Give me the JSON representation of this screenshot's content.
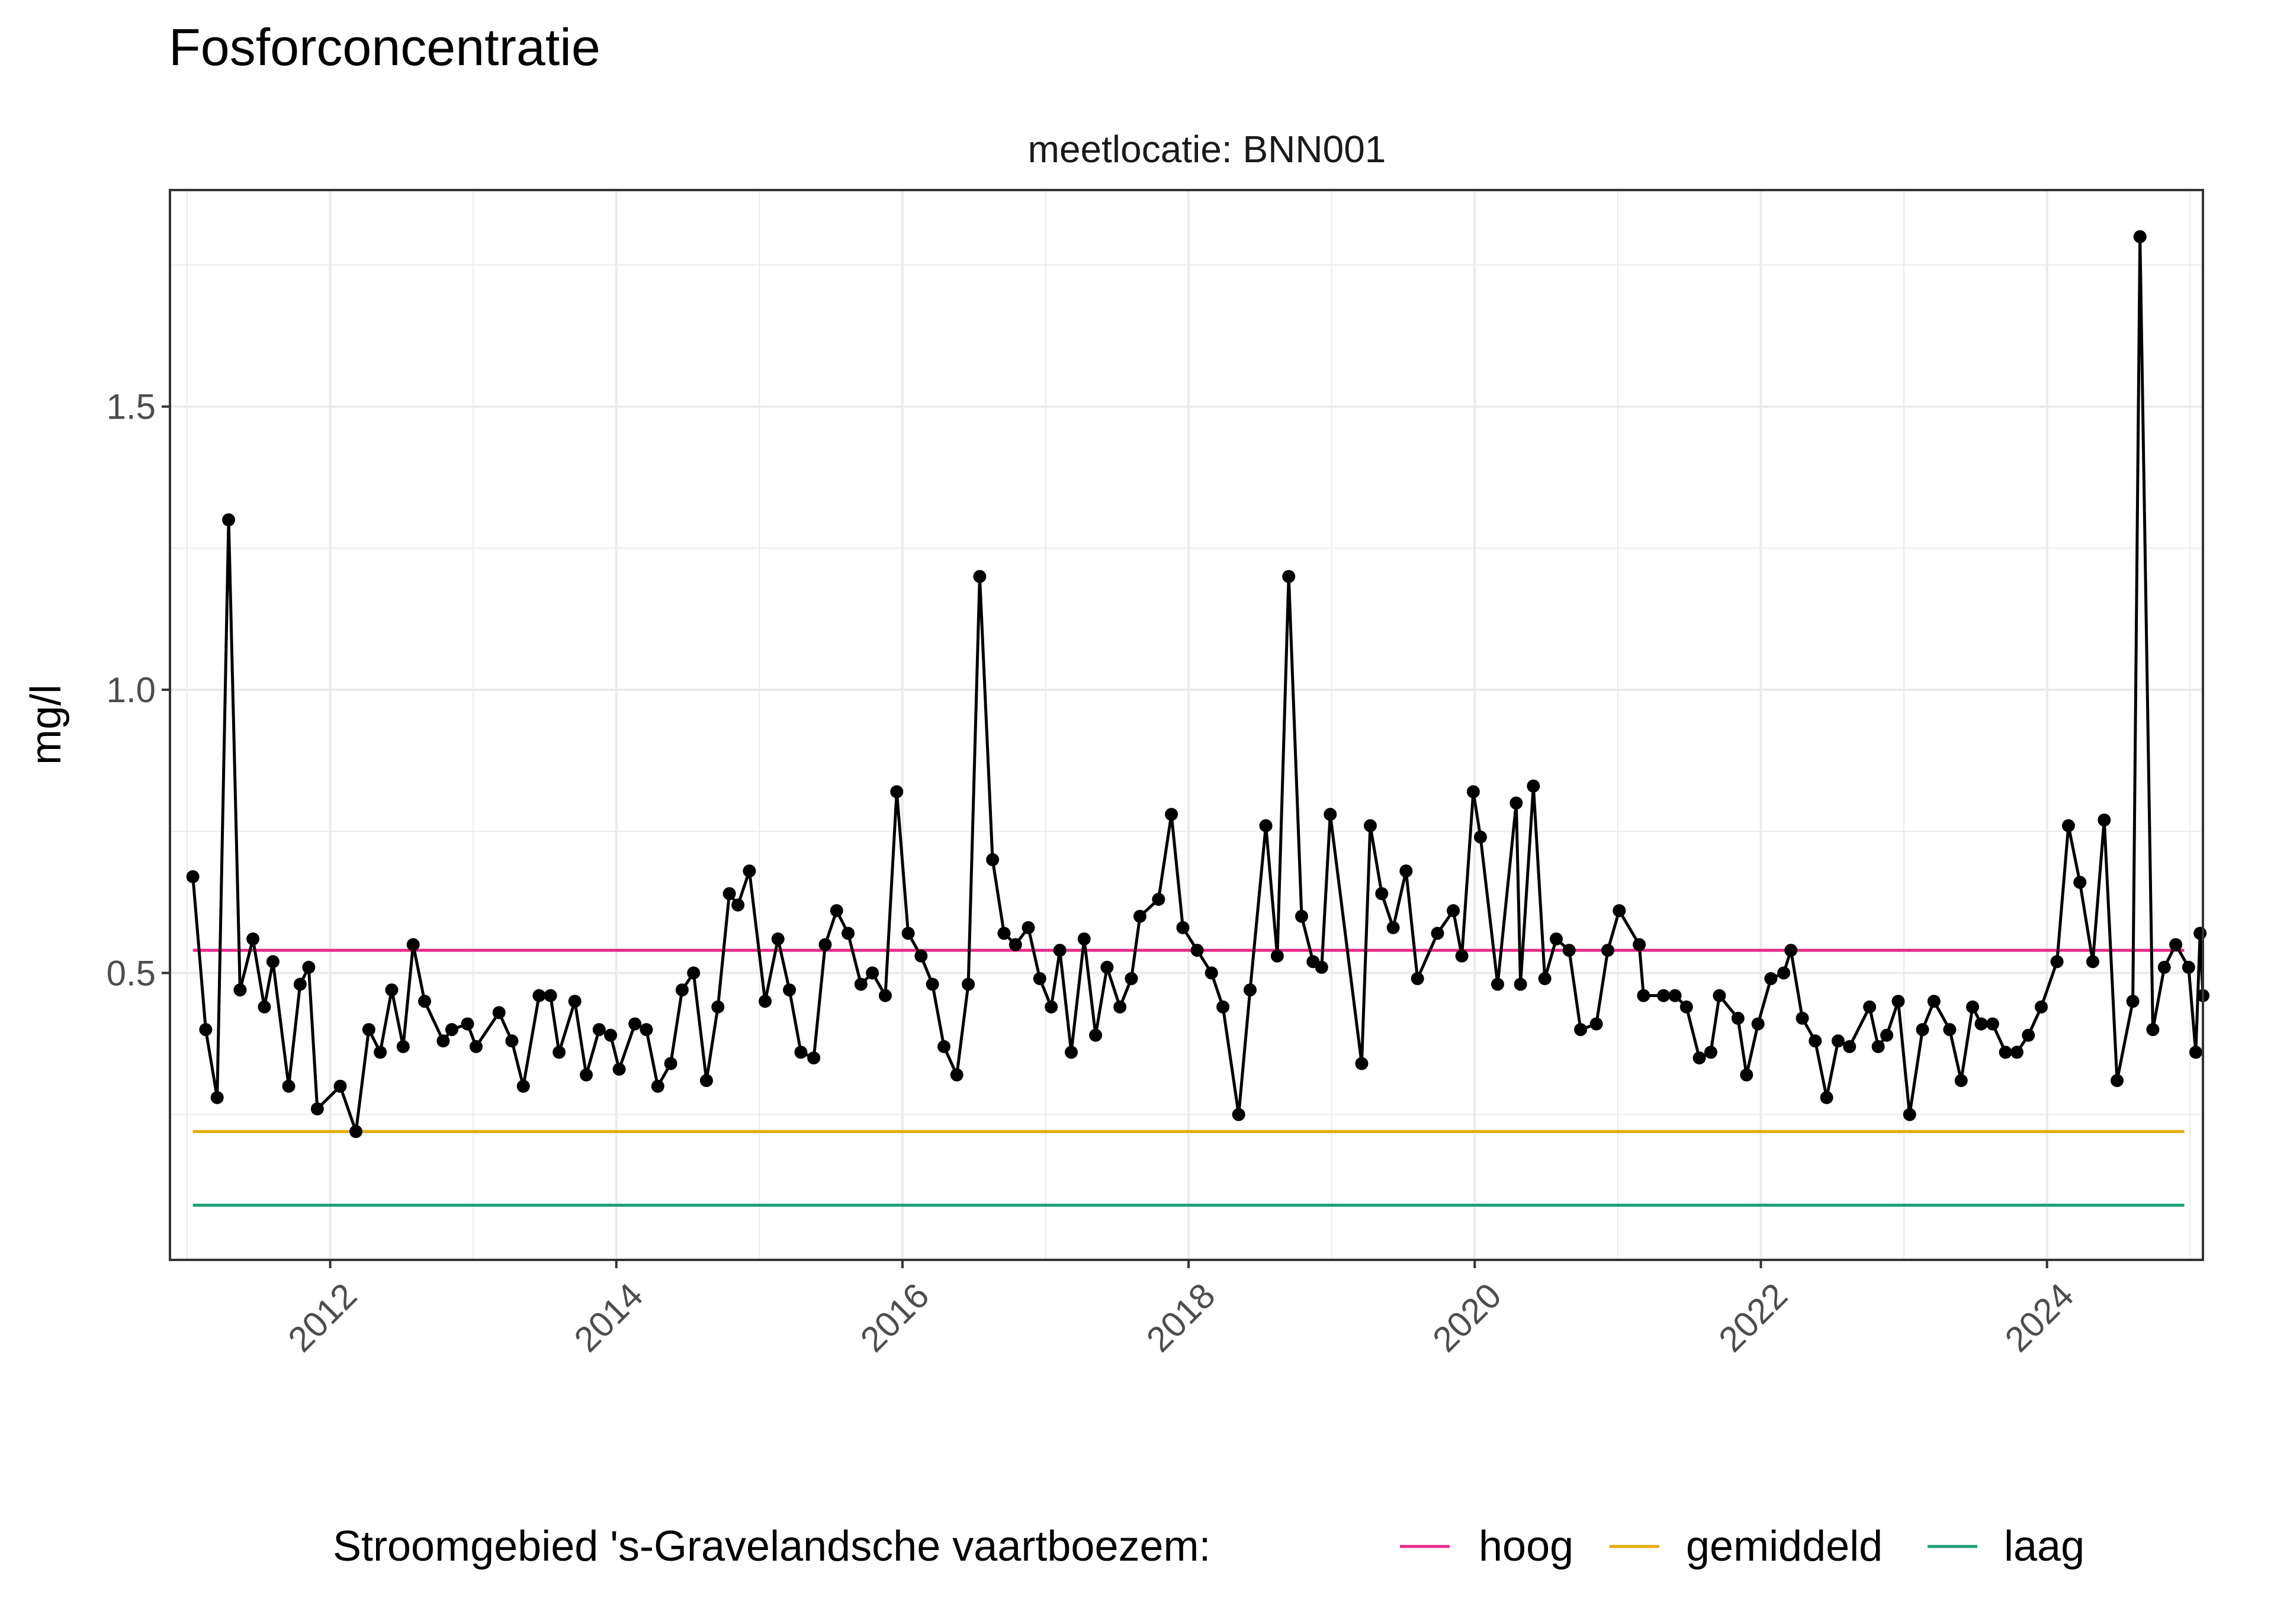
{
  "chart_data": {
    "type": "line",
    "title": "Fosforconcentratie",
    "facet_label": "meetlocatie: BNN001",
    "xlabel": "",
    "ylabel": "mg/l",
    "xlim": [
      2010.88,
      2025.09
    ],
    "ylim": [
      -0.0066,
      1.8823
    ],
    "x_ticks": [
      2012,
      2014,
      2016,
      2018,
      2020,
      2022,
      2024
    ],
    "y_ticks": [
      0.5,
      1.0,
      1.5
    ],
    "y_tick_labels": [
      "0.5",
      "1.0",
      "1.5"
    ],
    "grid": true,
    "legend_position": "bottom",
    "legend_title": "Stroomgebied 's-Gravelandsche vaartboezem:",
    "reference_lines": [
      {
        "name": "hoog",
        "value": 0.54,
        "x_from": 2011.04,
        "x_to": 2024.96,
        "color": "#E7298A"
      },
      {
        "name": "gemiddeld",
        "value": 0.22,
        "x_from": 2011.04,
        "x_to": 2024.96,
        "color": "#E6AB02"
      },
      {
        "name": "laag",
        "value": 0.09,
        "x_from": 2011.04,
        "x_to": 2024.96,
        "color": "#1B9E77"
      }
    ],
    "series": [
      {
        "color": "#000000",
        "points": [
          [
            2011.04,
            0.67
          ],
          [
            2011.13,
            0.4
          ],
          [
            2011.21,
            0.28
          ],
          [
            2011.29,
            1.3
          ],
          [
            2011.37,
            0.47
          ],
          [
            2011.46,
            0.56
          ],
          [
            2011.54,
            0.44
          ],
          [
            2011.6,
            0.52
          ],
          [
            2011.71,
            0.3
          ],
          [
            2011.79,
            0.48
          ],
          [
            2011.85,
            0.51
          ],
          [
            2011.91,
            0.26
          ],
          [
            2012.07,
            0.3
          ],
          [
            2012.18,
            0.22
          ],
          [
            2012.27,
            0.4
          ],
          [
            2012.35,
            0.36
          ],
          [
            2012.43,
            0.47
          ],
          [
            2012.51,
            0.37
          ],
          [
            2012.58,
            0.55
          ],
          [
            2012.66,
            0.45
          ],
          [
            2012.79,
            0.38
          ],
          [
            2012.85,
            0.4
          ],
          [
            2012.96,
            0.41
          ],
          [
            2013.02,
            0.37
          ],
          [
            2013.18,
            0.43
          ],
          [
            2013.27,
            0.38
          ],
          [
            2013.35,
            0.3
          ],
          [
            2013.46,
            0.46
          ],
          [
            2013.54,
            0.46
          ],
          [
            2013.6,
            0.36
          ],
          [
            2013.71,
            0.45
          ],
          [
            2013.79,
            0.32
          ],
          [
            2013.88,
            0.4
          ],
          [
            2013.96,
            0.39
          ],
          [
            2014.02,
            0.33
          ],
          [
            2014.13,
            0.41
          ],
          [
            2014.21,
            0.4
          ],
          [
            2014.29,
            0.3
          ],
          [
            2014.38,
            0.34
          ],
          [
            2014.46,
            0.47
          ],
          [
            2014.54,
            0.5
          ],
          [
            2014.63,
            0.31
          ],
          [
            2014.71,
            0.44
          ],
          [
            2014.79,
            0.64
          ],
          [
            2014.85,
            0.62
          ],
          [
            2014.93,
            0.68
          ],
          [
            2015.04,
            0.45
          ],
          [
            2015.13,
            0.56
          ],
          [
            2015.21,
            0.47
          ],
          [
            2015.29,
            0.36
          ],
          [
            2015.38,
            0.35
          ],
          [
            2015.46,
            0.55
          ],
          [
            2015.54,
            0.61
          ],
          [
            2015.62,
            0.57
          ],
          [
            2015.71,
            0.48
          ],
          [
            2015.79,
            0.5
          ],
          [
            2015.88,
            0.46
          ],
          [
            2015.96,
            0.82
          ],
          [
            2016.04,
            0.57
          ],
          [
            2016.13,
            0.53
          ],
          [
            2016.21,
            0.48
          ],
          [
            2016.29,
            0.37
          ],
          [
            2016.38,
            0.32
          ],
          [
            2016.46,
            0.48
          ],
          [
            2016.54,
            1.2
          ],
          [
            2016.63,
            0.7
          ],
          [
            2016.71,
            0.57
          ],
          [
            2016.79,
            0.55
          ],
          [
            2016.88,
            0.58
          ],
          [
            2016.96,
            0.49
          ],
          [
            2017.04,
            0.44
          ],
          [
            2017.1,
            0.54
          ],
          [
            2017.18,
            0.36
          ],
          [
            2017.27,
            0.56
          ],
          [
            2017.35,
            0.39
          ],
          [
            2017.43,
            0.51
          ],
          [
            2017.52,
            0.44
          ],
          [
            2017.6,
            0.49
          ],
          [
            2017.66,
            0.6
          ],
          [
            2017.79,
            0.63
          ],
          [
            2017.88,
            0.78
          ],
          [
            2017.96,
            0.58
          ],
          [
            2018.06,
            0.54
          ],
          [
            2018.16,
            0.5
          ],
          [
            2018.24,
            0.44
          ],
          [
            2018.35,
            0.25
          ],
          [
            2018.43,
            0.47
          ],
          [
            2018.54,
            0.76
          ],
          [
            2018.62,
            0.53
          ],
          [
            2018.7,
            1.2
          ],
          [
            2018.79,
            0.6
          ],
          [
            2018.87,
            0.52
          ],
          [
            2018.93,
            0.51
          ],
          [
            2018.99,
            0.78
          ],
          [
            2019.21,
            0.34
          ],
          [
            2019.27,
            0.76
          ],
          [
            2019.35,
            0.64
          ],
          [
            2019.43,
            0.58
          ],
          [
            2019.52,
            0.68
          ],
          [
            2019.6,
            0.49
          ],
          [
            2019.74,
            0.57
          ],
          [
            2019.85,
            0.61
          ],
          [
            2019.91,
            0.53
          ],
          [
            2019.99,
            0.82
          ],
          [
            2020.04,
            0.74
          ],
          [
            2020.16,
            0.48
          ],
          [
            2020.29,
            0.8
          ],
          [
            2020.32,
            0.48
          ],
          [
            2020.41,
            0.83
          ],
          [
            2020.49,
            0.49
          ],
          [
            2020.57,
            0.56
          ],
          [
            2020.66,
            0.54
          ],
          [
            2020.74,
            0.4
          ],
          [
            2020.85,
            0.41
          ],
          [
            2020.93,
            0.54
          ],
          [
            2021.01,
            0.61
          ],
          [
            2021.15,
            0.55
          ],
          [
            2021.18,
            0.46
          ],
          [
            2021.32,
            0.46
          ],
          [
            2021.4,
            0.46
          ],
          [
            2021.48,
            0.44
          ],
          [
            2021.57,
            0.35
          ],
          [
            2021.65,
            0.36
          ],
          [
            2021.71,
            0.46
          ],
          [
            2021.84,
            0.42
          ],
          [
            2021.9,
            0.32
          ],
          [
            2021.98,
            0.41
          ],
          [
            2022.07,
            0.49
          ],
          [
            2022.16,
            0.5
          ],
          [
            2022.21,
            0.54
          ],
          [
            2022.29,
            0.42
          ],
          [
            2022.38,
            0.38
          ],
          [
            2022.46,
            0.28
          ],
          [
            2022.54,
            0.38
          ],
          [
            2022.62,
            0.37
          ],
          [
            2022.76,
            0.44
          ],
          [
            2022.82,
            0.37
          ],
          [
            2022.88,
            0.39
          ],
          [
            2022.96,
            0.45
          ],
          [
            2023.04,
            0.25
          ],
          [
            2023.13,
            0.4
          ],
          [
            2023.21,
            0.45
          ],
          [
            2023.32,
            0.4
          ],
          [
            2023.4,
            0.31
          ],
          [
            2023.48,
            0.44
          ],
          [
            2023.54,
            0.41
          ],
          [
            2023.62,
            0.41
          ],
          [
            2023.71,
            0.36
          ],
          [
            2023.79,
            0.36
          ],
          [
            2023.87,
            0.39
          ],
          [
            2023.96,
            0.44
          ],
          [
            2024.07,
            0.52
          ],
          [
            2024.15,
            0.76
          ],
          [
            2024.23,
            0.66
          ],
          [
            2024.32,
            0.52
          ],
          [
            2024.4,
            0.77
          ],
          [
            2024.49,
            0.31
          ],
          [
            2024.6,
            0.45
          ],
          [
            2024.65,
            1.8
          ],
          [
            2024.74,
            0.4
          ],
          [
            2024.82,
            0.51
          ],
          [
            2024.9,
            0.55
          ],
          [
            2024.99,
            0.51
          ],
          [
            2025.04,
            0.36
          ],
          [
            2025.07,
            0.57
          ],
          [
            2025.09,
            0.46
          ]
        ]
      }
    ]
  }
}
